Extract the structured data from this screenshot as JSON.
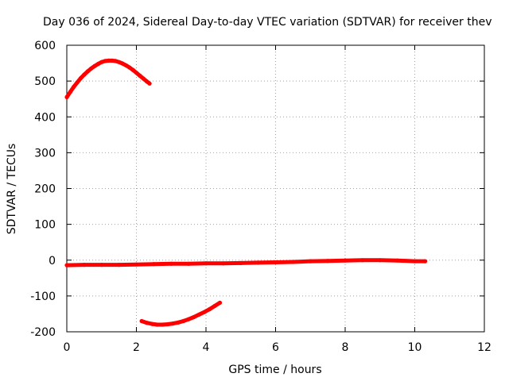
{
  "chart_data": {
    "type": "scatter",
    "title": "Day 036 of 2024, Sidereal Day-to-day VTEC variation (SDTVAR) for receiver thev",
    "xlabel": "GPS time / hours",
    "ylabel": "SDTVAR / TECUs",
    "xlim": [
      0,
      12
    ],
    "ylim": [
      -200,
      600
    ],
    "xticks": [
      0,
      2,
      4,
      6,
      8,
      10,
      12
    ],
    "yticks": [
      -200,
      -100,
      0,
      100,
      200,
      300,
      400,
      500,
      600
    ],
    "grid": true,
    "series_color": "#ff0000",
    "series": [
      {
        "name": "arc-upper",
        "x": [
          0.0,
          0.1,
          0.2,
          0.3,
          0.4,
          0.5,
          0.6,
          0.7,
          0.8,
          0.9,
          1.0,
          1.1,
          1.2,
          1.3,
          1.4,
          1.5,
          1.6,
          1.7,
          1.8,
          1.9,
          2.0,
          2.1,
          2.2,
          2.3,
          2.38
        ],
        "y": [
          455,
          470,
          484,
          496,
          508,
          518,
          527,
          535,
          542,
          548,
          553,
          556,
          557,
          557,
          556,
          553,
          549,
          544,
          538,
          531,
          523,
          515,
          507,
          499,
          493
        ]
      },
      {
        "name": "near-zero",
        "x": [
          0.0,
          0.5,
          1.0,
          1.5,
          2.0,
          2.5,
          3.0,
          3.5,
          4.0,
          4.5,
          5.0,
          5.5,
          6.0,
          6.5,
          7.0,
          7.5,
          8.0,
          8.5,
          9.0,
          9.5,
          10.0,
          10.3
        ],
        "y": [
          -14,
          -13,
          -13,
          -13,
          -12,
          -11,
          -10,
          -10,
          -9,
          -9,
          -8,
          -7,
          -6,
          -5,
          -3,
          -2,
          -1,
          0,
          0,
          -1,
          -3,
          -3
        ]
      },
      {
        "name": "arc-lower",
        "x": [
          2.15,
          2.3,
          2.45,
          2.6,
          2.75,
          2.9,
          3.05,
          3.2,
          3.35,
          3.5,
          3.65,
          3.8,
          3.95,
          4.1,
          4.25,
          4.4
        ],
        "y": [
          -170,
          -175,
          -178,
          -180,
          -180,
          -179,
          -177,
          -174,
          -170,
          -165,
          -159,
          -152,
          -145,
          -137,
          -128,
          -119
        ]
      }
    ]
  }
}
